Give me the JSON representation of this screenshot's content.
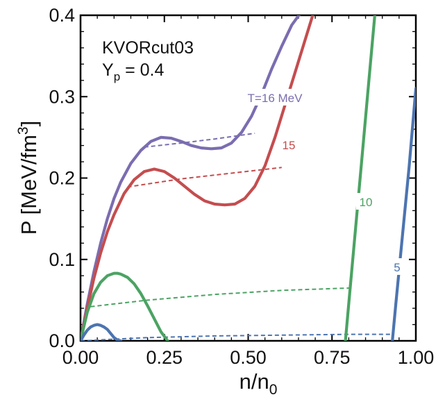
{
  "chart_data": {
    "type": "line",
    "title": "",
    "xlabel": "n/n",
    "xlabel_sub": "0",
    "ylabel": "P [MeV/fm",
    "ylabel_sup": "3",
    "ylabel_close": "]",
    "xlim": [
      0,
      1
    ],
    "ylim": [
      0,
      0.4
    ],
    "x_ticks": [
      0,
      0.25,
      0.5,
      0.75,
      1.0
    ],
    "x_tick_labels": [
      "0.00",
      "0.25",
      "0.50",
      "0.75",
      "1.00"
    ],
    "y_ticks": [
      0,
      0.1,
      0.2,
      0.3,
      0.4
    ],
    "y_tick_labels": [
      "0.0",
      "0.1",
      "0.2",
      "0.3",
      "0.4"
    ],
    "annotation_model": "KVORcut03",
    "annotation_yp_main": "Y",
    "annotation_yp_sub": "p",
    "annotation_yp_rest": " = 0.4",
    "series": [
      {
        "name": "T=16 MeV",
        "label": "T=16 MeV",
        "color": "#7b6db0",
        "x": [
          0,
          0.02,
          0.04,
          0.06,
          0.08,
          0.1,
          0.12,
          0.15,
          0.18,
          0.21,
          0.24,
          0.27,
          0.3,
          0.33,
          0.36,
          0.39,
          0.42,
          0.45,
          0.48,
          0.51,
          0.54,
          0.57,
          0.6,
          0.63,
          0.66
        ],
        "y": [
          0,
          0.045,
          0.085,
          0.12,
          0.15,
          0.175,
          0.195,
          0.218,
          0.234,
          0.245,
          0.25,
          0.249,
          0.245,
          0.24,
          0.237,
          0.236,
          0.237,
          0.243,
          0.256,
          0.276,
          0.303,
          0.334,
          0.362,
          0.388,
          0.405
        ],
        "maxwell_x": [
          0.19,
          0.3,
          0.4,
          0.52
        ],
        "maxwell_y": [
          0.238,
          0.243,
          0.248,
          0.255
        ]
      },
      {
        "name": "15",
        "label": "15",
        "color": "#c44d4f",
        "x": [
          0,
          0.02,
          0.04,
          0.06,
          0.08,
          0.1,
          0.13,
          0.16,
          0.19,
          0.22,
          0.25,
          0.28,
          0.31,
          0.34,
          0.37,
          0.4,
          0.43,
          0.46,
          0.49,
          0.52,
          0.55,
          0.58,
          0.61,
          0.64,
          0.67,
          0.7
        ],
        "y": [
          0,
          0.04,
          0.077,
          0.108,
          0.134,
          0.155,
          0.181,
          0.198,
          0.208,
          0.211,
          0.208,
          0.2,
          0.19,
          0.18,
          0.172,
          0.168,
          0.167,
          0.168,
          0.175,
          0.19,
          0.215,
          0.25,
          0.29,
          0.33,
          0.37,
          0.41
        ],
        "maxwell_x": [
          0.14,
          0.3,
          0.45,
          0.6
        ],
        "maxwell_y": [
          0.189,
          0.199,
          0.206,
          0.213
        ]
      },
      {
        "name": "10",
        "label": "10",
        "color": "#4ba363",
        "x": [
          0,
          0.02,
          0.04,
          0.06,
          0.08,
          0.1,
          0.11,
          0.12,
          0.14,
          0.16,
          0.18,
          0.2,
          0.22,
          0.24,
          0.26
        ],
        "y": [
          0,
          0.035,
          0.058,
          0.072,
          0.08,
          0.083,
          0.083,
          0.082,
          0.078,
          0.07,
          0.058,
          0.043,
          0.027,
          0.011,
          0
        ],
        "x2": [
          0.79,
          0.8,
          0.82,
          0.84,
          0.86,
          0.88,
          0.9
        ],
        "y2": [
          0,
          0.046,
          0.137,
          0.228,
          0.32,
          0.411,
          0.46
        ],
        "maxwell_x": [
          0.03,
          0.2,
          0.4,
          0.6,
          0.81
        ],
        "maxwell_y": [
          0.042,
          0.05,
          0.057,
          0.062,
          0.065
        ]
      },
      {
        "name": "5",
        "label": "5",
        "color": "#4c74b0",
        "x": [
          0,
          0.01,
          0.02,
          0.03,
          0.04,
          0.05,
          0.06,
          0.07,
          0.08,
          0.09,
          0.1,
          0.11,
          0.12
        ],
        "y": [
          0,
          0.007,
          0.013,
          0.017,
          0.019,
          0.02,
          0.019,
          0.017,
          0.014,
          0.009,
          0.004,
          0.001,
          0
        ],
        "x2": [
          0.93,
          0.94,
          0.96,
          0.98,
          1.0
        ],
        "y2": [
          0,
          0.044,
          0.129,
          0.214,
          0.31
        ],
        "maxwell_x": [
          0.0,
          0.2,
          0.4,
          0.6,
          0.8,
          0.93
        ],
        "maxwell_y": [
          0.0,
          0.004,
          0.006,
          0.007,
          0.008,
          0.008
        ]
      }
    ]
  }
}
